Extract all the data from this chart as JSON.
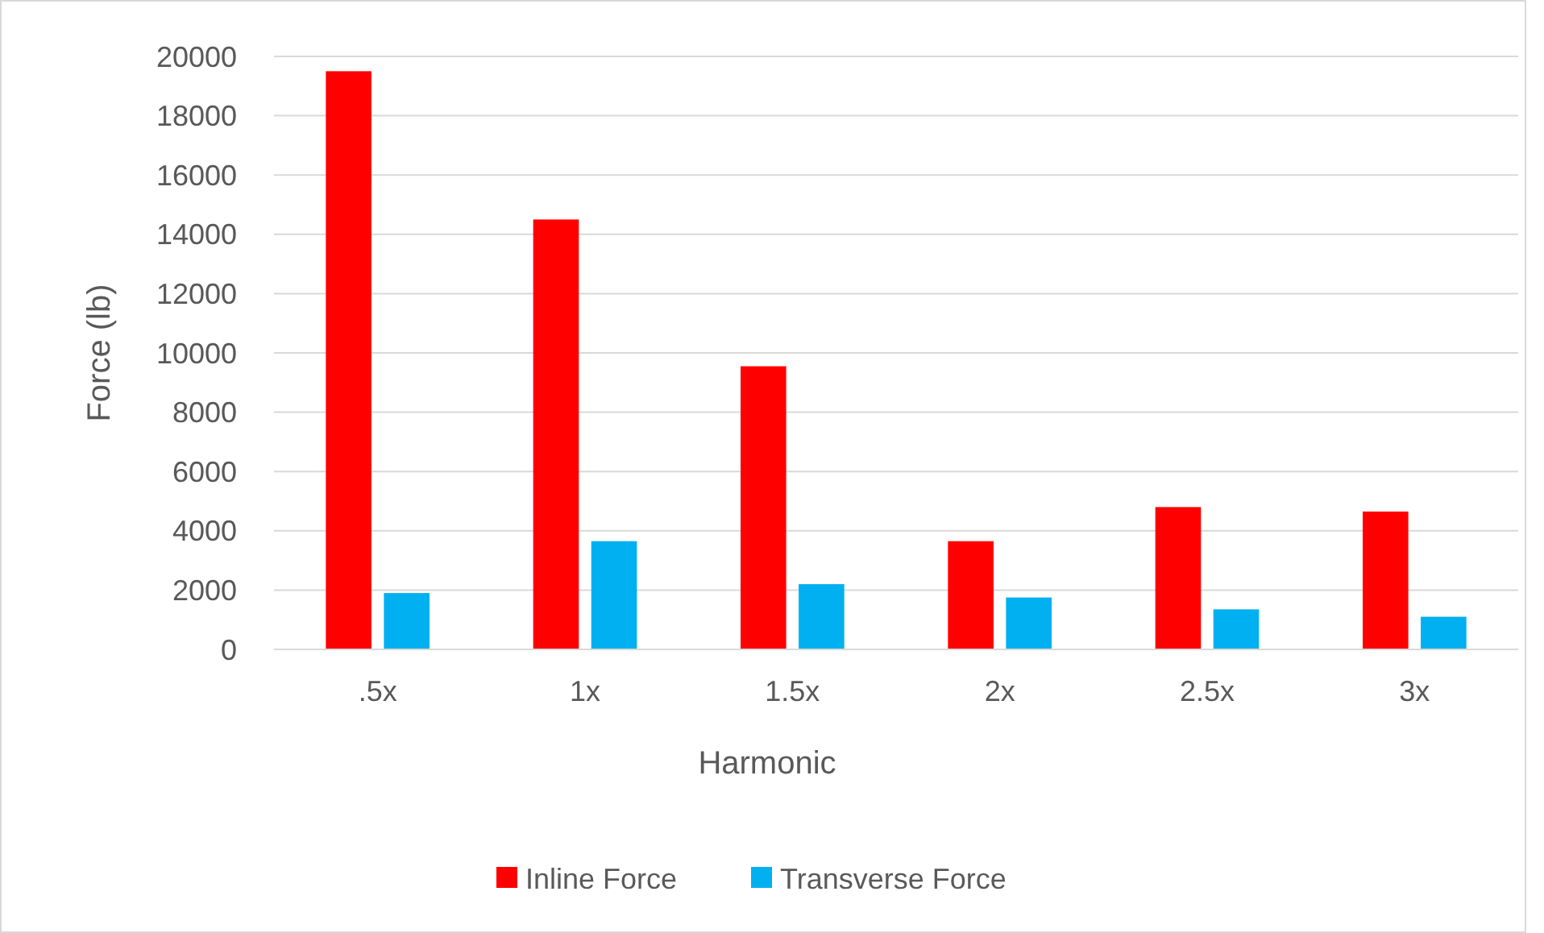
{
  "chart_data": {
    "type": "bar",
    "xlabel": "Harmonic",
    "ylabel": "Force (lb)",
    "categories": [
      ".5x",
      "1x",
      "1.5x",
      "2x",
      "2.5x",
      "3x"
    ],
    "series": [
      {
        "name": "Inline Force",
        "color": "#ff0000",
        "values": [
          19500,
          14500,
          9550,
          3650,
          4800,
          4650
        ]
      },
      {
        "name": "Transverse Force",
        "color": "#00b0f0",
        "values": [
          1900,
          3650,
          2200,
          1750,
          1350,
          1100
        ]
      }
    ],
    "ylim": [
      0,
      20000
    ],
    "yticks": [
      0,
      2000,
      4000,
      6000,
      8000,
      10000,
      12000,
      14000,
      16000,
      18000,
      20000
    ],
    "grid": "y",
    "legend": "bottom"
  }
}
